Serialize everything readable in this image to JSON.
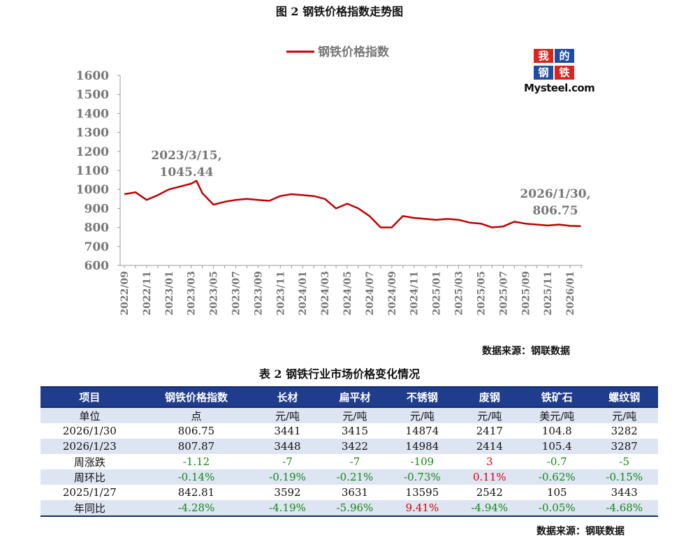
{
  "figure_title": "图 2 钢铁价格指数走势图",
  "logo": {
    "chars": [
      "我",
      "的",
      "钢",
      "铁"
    ],
    "text": "Mysteel.com"
  },
  "chart_data": {
    "type": "line",
    "title": "",
    "xlabel": "",
    "ylabel": "",
    "ylim": [
      600,
      1600
    ],
    "yticks": [
      600,
      700,
      800,
      900,
      1000,
      1100,
      1200,
      1300,
      1400,
      1500,
      1600
    ],
    "x_ticks": [
      "2022/09",
      "2022/11",
      "2023/01",
      "2023/03",
      "2023/05",
      "2023/07",
      "2023/09",
      "2023/11",
      "2024/01",
      "2024/03",
      "2024/05",
      "2024/07",
      "2024/09",
      "2024/11",
      "2025/01",
      "2025/03",
      "2025/05",
      "2025/07",
      "2025/09",
      "2025/11",
      "2026/01"
    ],
    "legend_position": "top",
    "grid": false,
    "series": [
      {
        "name": "钢铁价格指数",
        "color": "#c00000",
        "x": [
          "2022/09",
          "2022/10",
          "2022/11",
          "2022/12",
          "2023/01",
          "2023/02",
          "2023/03",
          "2023/03/15",
          "2023/04",
          "2023/05",
          "2023/06",
          "2023/07",
          "2023/08",
          "2023/09",
          "2023/10",
          "2023/11",
          "2023/12",
          "2024/01",
          "2024/02",
          "2024/03",
          "2024/04",
          "2024/05",
          "2024/06",
          "2024/07",
          "2024/08",
          "2024/09",
          "2024/10",
          "2024/11",
          "2024/12",
          "2025/01",
          "2025/02",
          "2025/03",
          "2025/04",
          "2025/05",
          "2025/06",
          "2025/07",
          "2025/08",
          "2025/09",
          "2025/10",
          "2025/11",
          "2025/12",
          "2026/01",
          "2026/1/30"
        ],
        "values": [
          975,
          985,
          945,
          970,
          1000,
          1015,
          1030,
          1045.44,
          980,
          920,
          935,
          945,
          950,
          945,
          940,
          965,
          975,
          970,
          965,
          950,
          900,
          925,
          900,
          860,
          800,
          800,
          860,
          850,
          845,
          840,
          845,
          840,
          825,
          820,
          800,
          805,
          830,
          820,
          815,
          810,
          815,
          808,
          806.75
        ]
      }
    ],
    "annotations": [
      {
        "x": "2023/3/15",
        "line1": "2023/3/15,",
        "line2": "1045.44"
      },
      {
        "x": "2026/1/30",
        "line1": "2026/1/30,",
        "line2": "806.75"
      }
    ]
  },
  "chart_source": "数据来源：钢联数据",
  "table_title": "表 2 钢铁行业市场价格变化情况",
  "table": {
    "headers": [
      "项目",
      "钢铁价格指数",
      "长材",
      "扁平材",
      "不锈钢",
      "废钢",
      "铁矿石",
      "螺纹钢"
    ],
    "rows": [
      [
        "单位",
        "点",
        "元/吨",
        "元/吨",
        "元/吨",
        "元/吨",
        "美元/吨",
        "元/吨"
      ],
      [
        "2026/1/30",
        "806.75",
        "3441",
        "3415",
        "14874",
        "2417",
        "104.8",
        "3282"
      ],
      [
        "2026/1/23",
        "807.87",
        "3448",
        "3422",
        "14984",
        "2414",
        "105.4",
        "3287"
      ],
      [
        "周涨跌",
        "-1.12",
        "-7",
        "-7",
        "-109",
        "3",
        "-0.7",
        "-5"
      ],
      [
        "周环比",
        "-0.14%",
        "-0.19%",
        "-0.21%",
        "-0.73%",
        "0.11%",
        "-0.62%",
        "-0.15%"
      ],
      [
        "2025/1/27",
        "842.81",
        "3592",
        "3631",
        "13595",
        "2542",
        "105",
        "3443"
      ],
      [
        "年同比",
        "-4.28%",
        "-4.19%",
        "-5.96%",
        "9.41%",
        "-4.94%",
        "-0.05%",
        "-4.68%"
      ]
    ]
  },
  "table_source": "数据来源：钢联数据",
  "colors": {
    "line": "#c00000",
    "header_bg": "#1f3d8c",
    "row_band": "#dde4f2",
    "negative": "#138a13",
    "positive": "#d60000",
    "logo_red": "#d9261c",
    "logo_blue": "#1f4ea1"
  }
}
